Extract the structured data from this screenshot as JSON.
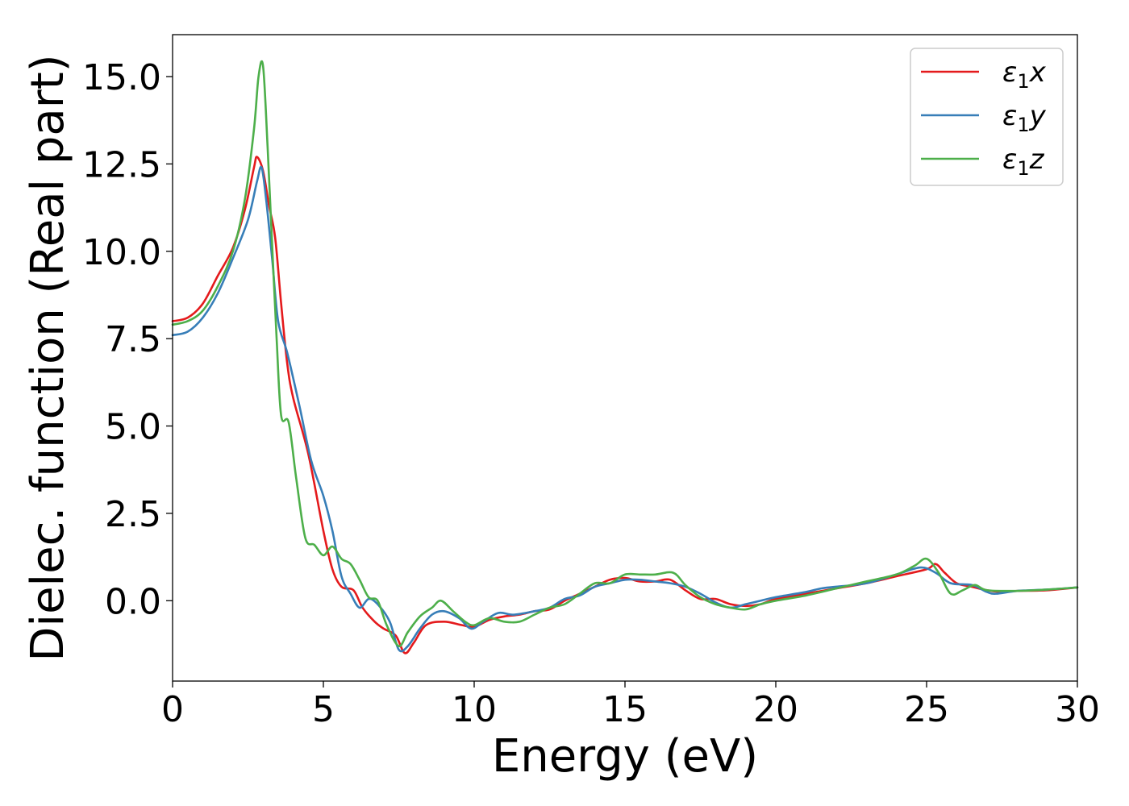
{
  "chart_data": {
    "type": "line",
    "xlabel": "Energy (eV)",
    "ylabel": "Dielec. function (Real part)",
    "xlim": [
      0,
      30
    ],
    "ylim": [
      -2.3,
      16.2
    ],
    "xticks": [
      0,
      5,
      10,
      15,
      20,
      25,
      30
    ],
    "xtick_labels": [
      "0",
      "5",
      "10",
      "15",
      "20",
      "25",
      "30"
    ],
    "yticks": [
      0,
      2.5,
      5,
      7.5,
      10,
      12.5,
      15
    ],
    "ytick_labels": [
      "0.0",
      "2.5",
      "5.0",
      "7.5",
      "10.0",
      "12.5",
      "15.0"
    ],
    "grid": false,
    "legend_position": "top-right",
    "series": [
      {
        "name": "ε1x",
        "label_main": "ε",
        "label_sub": "1",
        "label_axis": "x",
        "color": "#e41a1c",
        "points": [
          [
            0,
            8.0
          ],
          [
            0.5,
            8.1
          ],
          [
            1.0,
            8.5
          ],
          [
            1.5,
            9.3
          ],
          [
            2.0,
            10.1
          ],
          [
            2.4,
            11.2
          ],
          [
            2.7,
            12.4
          ],
          [
            2.8,
            12.7
          ],
          [
            3.0,
            12.3
          ],
          [
            3.2,
            11.3
          ],
          [
            3.4,
            10.4
          ],
          [
            3.6,
            8.5
          ],
          [
            3.8,
            6.8
          ],
          [
            4.0,
            5.8
          ],
          [
            4.5,
            4.2
          ],
          [
            5.0,
            2.0
          ],
          [
            5.3,
            0.9
          ],
          [
            5.6,
            0.4
          ],
          [
            6.0,
            0.3
          ],
          [
            6.3,
            -0.2
          ],
          [
            6.7,
            -0.6
          ],
          [
            7.0,
            -0.8
          ],
          [
            7.4,
            -1.0
          ],
          [
            7.7,
            -1.5
          ],
          [
            8.0,
            -1.2
          ],
          [
            8.4,
            -0.7
          ],
          [
            9.0,
            -0.6
          ],
          [
            9.6,
            -0.7
          ],
          [
            10.0,
            -0.75
          ],
          [
            10.5,
            -0.55
          ],
          [
            11.0,
            -0.45
          ],
          [
            11.5,
            -0.4
          ],
          [
            12.0,
            -0.3
          ],
          [
            12.5,
            -0.25
          ],
          [
            13.0,
            0.0
          ],
          [
            13.5,
            0.2
          ],
          [
            14.0,
            0.4
          ],
          [
            14.5,
            0.6
          ],
          [
            15.0,
            0.65
          ],
          [
            15.5,
            0.55
          ],
          [
            16.0,
            0.55
          ],
          [
            16.5,
            0.6
          ],
          [
            17.0,
            0.3
          ],
          [
            17.5,
            0.05
          ],
          [
            18.0,
            0.05
          ],
          [
            18.5,
            -0.1
          ],
          [
            19.0,
            -0.15
          ],
          [
            19.5,
            -0.1
          ],
          [
            20.0,
            0.05
          ],
          [
            21.0,
            0.2
          ],
          [
            22.0,
            0.35
          ],
          [
            23.0,
            0.5
          ],
          [
            24.0,
            0.7
          ],
          [
            25.0,
            0.9
          ],
          [
            25.3,
            1.05
          ],
          [
            25.6,
            0.8
          ],
          [
            26.0,
            0.5
          ],
          [
            26.5,
            0.4
          ],
          [
            27.0,
            0.3
          ],
          [
            27.5,
            0.25
          ],
          [
            28.0,
            0.28
          ],
          [
            29.0,
            0.3
          ],
          [
            30.0,
            0.38
          ]
        ]
      },
      {
        "name": "ε1y",
        "label_main": "ε",
        "label_sub": "1",
        "label_axis": "y",
        "color": "#377eb8",
        "points": [
          [
            0,
            7.6
          ],
          [
            0.5,
            7.7
          ],
          [
            1.0,
            8.1
          ],
          [
            1.5,
            8.8
          ],
          [
            2.0,
            9.8
          ],
          [
            2.5,
            10.9
          ],
          [
            2.8,
            12.0
          ],
          [
            2.95,
            12.4
          ],
          [
            3.1,
            11.5
          ],
          [
            3.3,
            9.8
          ],
          [
            3.5,
            8.0
          ],
          [
            3.8,
            7.1
          ],
          [
            4.2,
            5.6
          ],
          [
            4.6,
            4.0
          ],
          [
            5.0,
            3.0
          ],
          [
            5.3,
            2.0
          ],
          [
            5.6,
            0.7
          ],
          [
            5.9,
            0.2
          ],
          [
            6.2,
            -0.2
          ],
          [
            6.5,
            0.05
          ],
          [
            6.8,
            -0.1
          ],
          [
            7.2,
            -0.6
          ],
          [
            7.5,
            -1.4
          ],
          [
            7.8,
            -1.3
          ],
          [
            8.2,
            -0.8
          ],
          [
            8.6,
            -0.4
          ],
          [
            9.0,
            -0.3
          ],
          [
            9.5,
            -0.5
          ],
          [
            9.9,
            -0.8
          ],
          [
            10.3,
            -0.6
          ],
          [
            10.8,
            -0.35
          ],
          [
            11.3,
            -0.4
          ],
          [
            12.0,
            -0.3
          ],
          [
            12.5,
            -0.2
          ],
          [
            13.0,
            0.05
          ],
          [
            13.5,
            0.15
          ],
          [
            14.0,
            0.4
          ],
          [
            14.5,
            0.5
          ],
          [
            15.0,
            0.6
          ],
          [
            15.5,
            0.6
          ],
          [
            16.0,
            0.55
          ],
          [
            16.5,
            0.5
          ],
          [
            17.0,
            0.4
          ],
          [
            17.5,
            0.2
          ],
          [
            18.0,
            -0.05
          ],
          [
            18.5,
            -0.2
          ],
          [
            19.0,
            -0.1
          ],
          [
            19.5,
            0.0
          ],
          [
            20.0,
            0.1
          ],
          [
            21.0,
            0.25
          ],
          [
            21.5,
            0.35
          ],
          [
            22.0,
            0.4
          ],
          [
            23.0,
            0.5
          ],
          [
            24.0,
            0.75
          ],
          [
            24.8,
            0.95
          ],
          [
            25.3,
            0.8
          ],
          [
            25.8,
            0.5
          ],
          [
            26.5,
            0.45
          ],
          [
            27.0,
            0.25
          ],
          [
            27.3,
            0.2
          ],
          [
            28.0,
            0.28
          ],
          [
            29.0,
            0.32
          ],
          [
            30.0,
            0.38
          ]
        ]
      },
      {
        "name": "ε1z",
        "label_main": "ε",
        "label_sub": "1",
        "label_axis": "z",
        "color": "#4daf4a",
        "points": [
          [
            0,
            7.9
          ],
          [
            0.5,
            8.0
          ],
          [
            1.0,
            8.3
          ],
          [
            1.5,
            9.0
          ],
          [
            2.0,
            10.0
          ],
          [
            2.4,
            11.5
          ],
          [
            2.7,
            13.5
          ],
          [
            2.85,
            15.0
          ],
          [
            3.0,
            15.3
          ],
          [
            3.15,
            13.0
          ],
          [
            3.3,
            10.2
          ],
          [
            3.45,
            7.5
          ],
          [
            3.6,
            5.3
          ],
          [
            3.85,
            5.1
          ],
          [
            4.1,
            3.5
          ],
          [
            4.4,
            1.8
          ],
          [
            4.7,
            1.6
          ],
          [
            5.0,
            1.3
          ],
          [
            5.3,
            1.55
          ],
          [
            5.6,
            1.2
          ],
          [
            5.9,
            1.05
          ],
          [
            6.2,
            0.6
          ],
          [
            6.5,
            0.1
          ],
          [
            6.8,
            0.0
          ],
          [
            7.1,
            -0.7
          ],
          [
            7.5,
            -1.3
          ],
          [
            7.8,
            -0.9
          ],
          [
            8.2,
            -0.45
          ],
          [
            8.6,
            -0.2
          ],
          [
            8.9,
            0.0
          ],
          [
            9.3,
            -0.3
          ],
          [
            9.7,
            -0.6
          ],
          [
            10.0,
            -0.7
          ],
          [
            10.5,
            -0.5
          ],
          [
            11.0,
            -0.6
          ],
          [
            11.5,
            -0.6
          ],
          [
            12.0,
            -0.4
          ],
          [
            12.5,
            -0.2
          ],
          [
            13.0,
            -0.1
          ],
          [
            13.5,
            0.2
          ],
          [
            14.0,
            0.5
          ],
          [
            14.5,
            0.5
          ],
          [
            15.0,
            0.75
          ],
          [
            15.5,
            0.75
          ],
          [
            16.0,
            0.75
          ],
          [
            16.6,
            0.8
          ],
          [
            17.0,
            0.45
          ],
          [
            17.5,
            0.1
          ],
          [
            18.0,
            -0.1
          ],
          [
            18.5,
            -0.2
          ],
          [
            19.0,
            -0.25
          ],
          [
            19.5,
            -0.1
          ],
          [
            20.0,
            0.0
          ],
          [
            21.0,
            0.15
          ],
          [
            22.0,
            0.35
          ],
          [
            23.0,
            0.55
          ],
          [
            24.0,
            0.75
          ],
          [
            24.6,
            1.0
          ],
          [
            25.0,
            1.2
          ],
          [
            25.4,
            0.8
          ],
          [
            25.8,
            0.2
          ],
          [
            26.2,
            0.3
          ],
          [
            26.6,
            0.45
          ],
          [
            27.0,
            0.3
          ],
          [
            28.0,
            0.28
          ],
          [
            29.0,
            0.32
          ],
          [
            30.0,
            0.38
          ]
        ]
      }
    ]
  }
}
